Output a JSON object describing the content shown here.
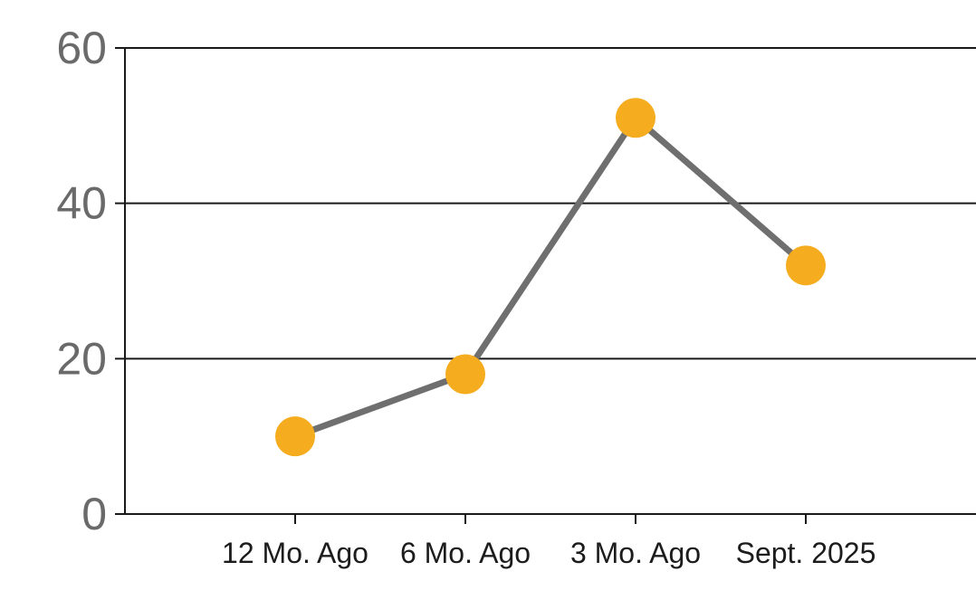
{
  "chart_data": {
    "type": "line",
    "categories": [
      "12 Mo. Ago",
      "6 Mo. Ago",
      "3 Mo. Ago",
      "Sept. 2025"
    ],
    "values": [
      10,
      18,
      51,
      32
    ],
    "title": "",
    "xlabel": "",
    "ylabel": "",
    "ylim": [
      0,
      60
    ],
    "yticks": [
      0,
      20,
      40,
      60
    ],
    "grid": true,
    "legend": false,
    "colors": {
      "marker_fill": "#F5AC1E",
      "series_line": "#6F6F6F",
      "axis_line": "#1A1A1A",
      "y_tick_label": "#6A6A6A",
      "x_tick_label": "#1C1C1C",
      "background": "#FFFFFF"
    }
  }
}
